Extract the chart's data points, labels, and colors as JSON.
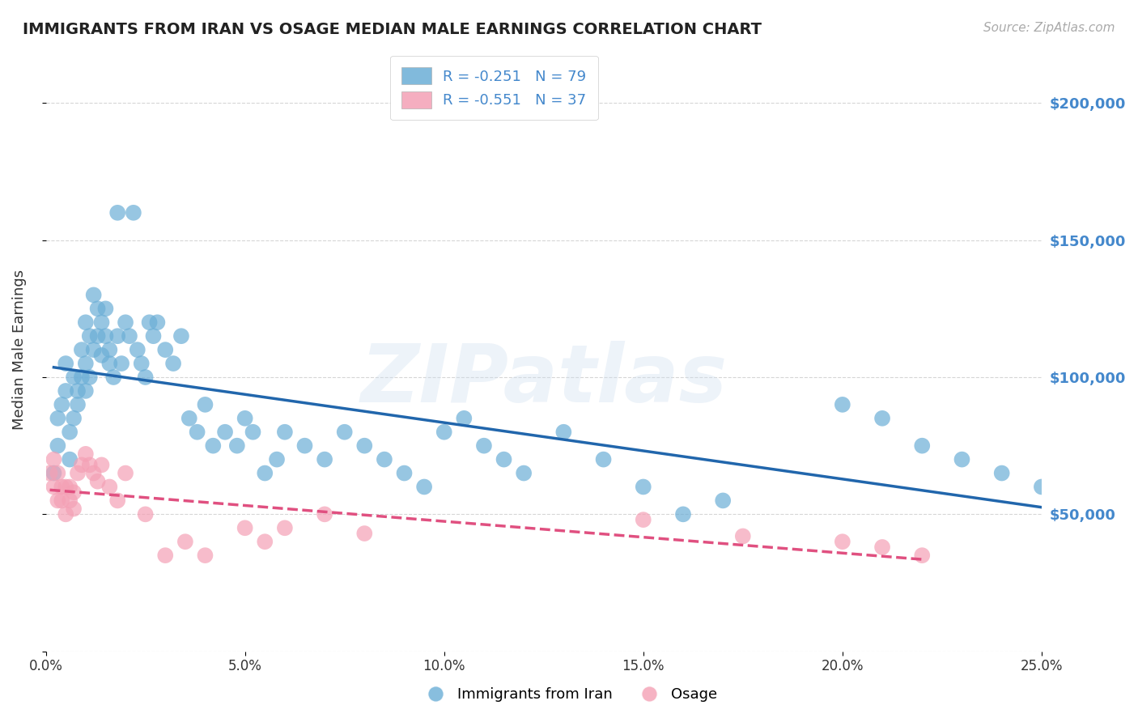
{
  "title": "IMMIGRANTS FROM IRAN VS OSAGE MEDIAN MALE EARNINGS CORRELATION CHART",
  "source": "Source: ZipAtlas.com",
  "ylabel": "Median Male Earnings",
  "xlim": [
    0.0,
    0.25
  ],
  "ylim": [
    0,
    220000
  ],
  "yticks": [
    0,
    50000,
    100000,
    150000,
    200000
  ],
  "ytick_labels": [
    "",
    "$50,000",
    "$100,000",
    "$150,000",
    "$200,000"
  ],
  "xtick_labels": [
    "0.0%",
    "5.0%",
    "10.0%",
    "15.0%",
    "20.0%",
    "25.0%"
  ],
  "xticks": [
    0.0,
    0.05,
    0.1,
    0.15,
    0.2,
    0.25
  ],
  "legend1_label": "R = -0.251   N = 79",
  "legend2_label": "R = -0.551   N = 37",
  "watermark": "ZIPatlas",
  "blue_color": "#6baed6",
  "pink_color": "#f4a0b5",
  "line_blue": "#2166ac",
  "line_pink": "#e05080",
  "axis_color": "#4488cc",
  "iran_x": [
    0.002,
    0.003,
    0.003,
    0.004,
    0.005,
    0.005,
    0.006,
    0.006,
    0.007,
    0.007,
    0.008,
    0.008,
    0.009,
    0.009,
    0.01,
    0.01,
    0.01,
    0.011,
    0.011,
    0.012,
    0.012,
    0.013,
    0.013,
    0.014,
    0.014,
    0.015,
    0.015,
    0.016,
    0.016,
    0.017,
    0.018,
    0.018,
    0.019,
    0.02,
    0.021,
    0.022,
    0.023,
    0.024,
    0.025,
    0.026,
    0.027,
    0.028,
    0.03,
    0.032,
    0.034,
    0.036,
    0.038,
    0.04,
    0.042,
    0.045,
    0.048,
    0.05,
    0.052,
    0.055,
    0.058,
    0.06,
    0.065,
    0.07,
    0.075,
    0.08,
    0.085,
    0.09,
    0.095,
    0.1,
    0.105,
    0.11,
    0.115,
    0.12,
    0.13,
    0.14,
    0.15,
    0.16,
    0.17,
    0.2,
    0.21,
    0.22,
    0.23,
    0.24,
    0.25
  ],
  "iran_y": [
    65000,
    75000,
    85000,
    90000,
    105000,
    95000,
    80000,
    70000,
    100000,
    85000,
    95000,
    90000,
    110000,
    100000,
    120000,
    105000,
    95000,
    115000,
    100000,
    130000,
    110000,
    125000,
    115000,
    120000,
    108000,
    125000,
    115000,
    110000,
    105000,
    100000,
    160000,
    115000,
    105000,
    120000,
    115000,
    160000,
    110000,
    105000,
    100000,
    120000,
    115000,
    120000,
    110000,
    105000,
    115000,
    85000,
    80000,
    90000,
    75000,
    80000,
    75000,
    85000,
    80000,
    65000,
    70000,
    80000,
    75000,
    70000,
    80000,
    75000,
    70000,
    65000,
    60000,
    80000,
    85000,
    75000,
    70000,
    65000,
    80000,
    70000,
    60000,
    50000,
    55000,
    90000,
    85000,
    75000,
    70000,
    65000,
    60000
  ],
  "osage_x": [
    0.001,
    0.002,
    0.002,
    0.003,
    0.003,
    0.004,
    0.004,
    0.005,
    0.005,
    0.006,
    0.006,
    0.007,
    0.007,
    0.008,
    0.009,
    0.01,
    0.011,
    0.012,
    0.013,
    0.014,
    0.016,
    0.018,
    0.02,
    0.025,
    0.03,
    0.035,
    0.04,
    0.05,
    0.055,
    0.06,
    0.07,
    0.08,
    0.15,
    0.175,
    0.2,
    0.21,
    0.22
  ],
  "osage_y": [
    65000,
    70000,
    60000,
    55000,
    65000,
    60000,
    55000,
    60000,
    50000,
    55000,
    60000,
    58000,
    52000,
    65000,
    68000,
    72000,
    68000,
    65000,
    62000,
    68000,
    60000,
    55000,
    65000,
    50000,
    35000,
    40000,
    35000,
    45000,
    40000,
    45000,
    50000,
    43000,
    48000,
    42000,
    40000,
    38000,
    35000
  ]
}
